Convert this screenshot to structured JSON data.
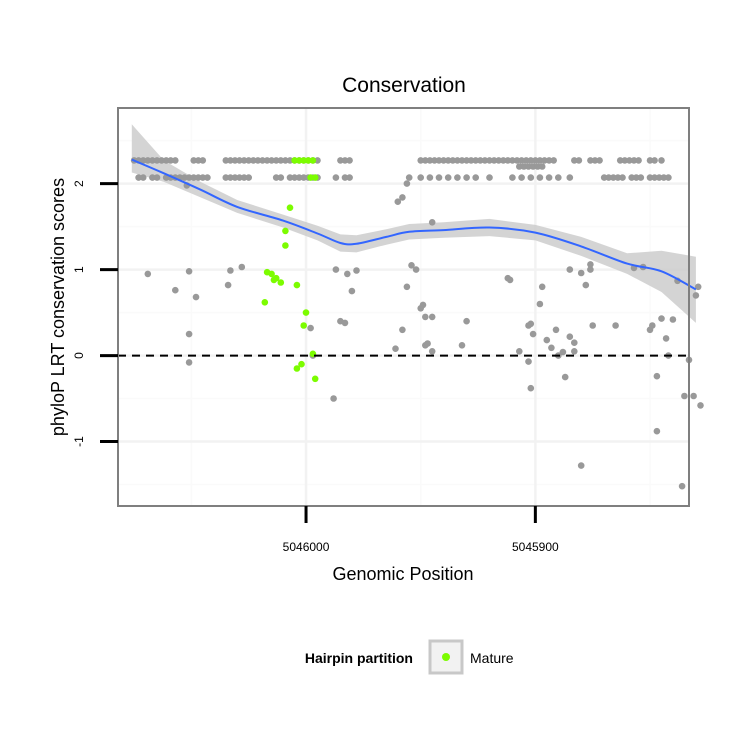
{
  "chart_data": {
    "type": "scatter",
    "title": "Conservation",
    "xlabel": "Genomic Position",
    "ylabel": "phyloP LRT conservation scores",
    "x_reversed": true,
    "xlim": [
      5046082,
      5045833
    ],
    "ylim": [
      -1.75,
      2.88
    ],
    "x_ticks": [
      5046000,
      5045900
    ],
    "x_tick_labels": [
      "5046000",
      "5045900"
    ],
    "y_ticks": [
      -1,
      0,
      1,
      2
    ],
    "y_tick_labels": [
      "-1",
      "0",
      "1",
      "2"
    ],
    "grid": true,
    "reference_line": {
      "y": 0,
      "style": "dashed",
      "color": "#000000"
    },
    "legend": {
      "title": "Hairpin partition",
      "placement": "bottom",
      "entries": [
        {
          "label": "Mature",
          "color": "#7cfc00"
        }
      ]
    },
    "series": [
      {
        "color": "#999999",
        "points": [
          [
            5046075,
            2.27
          ],
          [
            5046073,
            2.27
          ],
          [
            5046071,
            2.27
          ],
          [
            5046069,
            2.27
          ],
          [
            5046067,
            2.27
          ],
          [
            5046065,
            2.27
          ],
          [
            5046063,
            2.27
          ],
          [
            5046061,
            2.27
          ],
          [
            5046059,
            2.27
          ],
          [
            5046057,
            2.27
          ],
          [
            5046049,
            2.27
          ],
          [
            5046047,
            2.27
          ],
          [
            5046045,
            2.27
          ],
          [
            5046035,
            2.27
          ],
          [
            5046033,
            2.27
          ],
          [
            5046031,
            2.27
          ],
          [
            5046029,
            2.27
          ],
          [
            5046027,
            2.27
          ],
          [
            5046025,
            2.27
          ],
          [
            5046023,
            2.27
          ],
          [
            5046021,
            2.27
          ],
          [
            5046019,
            2.27
          ],
          [
            5046017,
            2.27
          ],
          [
            5046015,
            2.27
          ],
          [
            5046013,
            2.27
          ],
          [
            5046011,
            2.27
          ],
          [
            5046009,
            2.27
          ],
          [
            5046007,
            2.27
          ],
          [
            5046005,
            2.27
          ],
          [
            5046003,
            2.27
          ],
          [
            5046001,
            2.27
          ],
          [
            5045999,
            2.27
          ],
          [
            5045997,
            2.27
          ],
          [
            5045995,
            2.27
          ],
          [
            5045985,
            2.27
          ],
          [
            5045983,
            2.27
          ],
          [
            5045981,
            2.27
          ],
          [
            5045950,
            2.27
          ],
          [
            5045948,
            2.27
          ],
          [
            5045946,
            2.27
          ],
          [
            5045944,
            2.27
          ],
          [
            5045942,
            2.27
          ],
          [
            5045940,
            2.27
          ],
          [
            5045938,
            2.27
          ],
          [
            5045936,
            2.27
          ],
          [
            5045934,
            2.27
          ],
          [
            5045932,
            2.27
          ],
          [
            5045930,
            2.27
          ],
          [
            5045928,
            2.27
          ],
          [
            5045926,
            2.27
          ],
          [
            5045924,
            2.27
          ],
          [
            5045922,
            2.27
          ],
          [
            5045920,
            2.27
          ],
          [
            5045918,
            2.27
          ],
          [
            5045916,
            2.27
          ],
          [
            5045914,
            2.27
          ],
          [
            5045912,
            2.27
          ],
          [
            5045910,
            2.27
          ],
          [
            5045908,
            2.27
          ],
          [
            5045906,
            2.27
          ],
          [
            5045904,
            2.27
          ],
          [
            5045902,
            2.27
          ],
          [
            5045900,
            2.27
          ],
          [
            5045898,
            2.27
          ],
          [
            5045896,
            2.27
          ],
          [
            5045894,
            2.27
          ],
          [
            5045892,
            2.27
          ],
          [
            5045883,
            2.27
          ],
          [
            5045881,
            2.27
          ],
          [
            5045876,
            2.27
          ],
          [
            5045874,
            2.27
          ],
          [
            5045872,
            2.27
          ],
          [
            5045863,
            2.27
          ],
          [
            5045861,
            2.27
          ],
          [
            5045859,
            2.27
          ],
          [
            5045857,
            2.27
          ],
          [
            5045855,
            2.27
          ],
          [
            5045850,
            2.27
          ],
          [
            5045848,
            2.27
          ],
          [
            5045845,
            2.27
          ],
          [
            5046073,
            2.07
          ],
          [
            5046071,
            2.07
          ],
          [
            5046067,
            2.07
          ],
          [
            5046065,
            2.07
          ],
          [
            5046061,
            2.07
          ],
          [
            5046059,
            2.07
          ],
          [
            5046057,
            2.07
          ],
          [
            5046055,
            2.07
          ],
          [
            5046053,
            2.07
          ],
          [
            5046051,
            2.07
          ],
          [
            5046049,
            2.07
          ],
          [
            5046047,
            2.07
          ],
          [
            5046045,
            2.07
          ],
          [
            5046043,
            2.07
          ],
          [
            5046035,
            2.07
          ],
          [
            5046033,
            2.07
          ],
          [
            5046031,
            2.07
          ],
          [
            5046029,
            2.07
          ],
          [
            5046027,
            2.07
          ],
          [
            5046025,
            2.07
          ],
          [
            5046013,
            2.07
          ],
          [
            5046011,
            2.07
          ],
          [
            5046007,
            2.07
          ],
          [
            5046005,
            2.07
          ],
          [
            5046003,
            2.07
          ],
          [
            5046001,
            2.07
          ],
          [
            5045999,
            2.07
          ],
          [
            5045997,
            2.07
          ],
          [
            5045995,
            2.07
          ],
          [
            5045987,
            2.07
          ],
          [
            5045983,
            2.07
          ],
          [
            5045981,
            2.07
          ],
          [
            5045955,
            2.07
          ],
          [
            5045950,
            2.07
          ],
          [
            5045946,
            2.07
          ],
          [
            5045942,
            2.07
          ],
          [
            5045938,
            2.07
          ],
          [
            5045934,
            2.07
          ],
          [
            5045930,
            2.07
          ],
          [
            5045926,
            2.07
          ],
          [
            5045920,
            2.07
          ],
          [
            5045910,
            2.07
          ],
          [
            5045906,
            2.07
          ],
          [
            5045902,
            2.07
          ],
          [
            5045898,
            2.07
          ],
          [
            5045894,
            2.07
          ],
          [
            5045890,
            2.07
          ],
          [
            5045885,
            2.07
          ],
          [
            5045870,
            2.07
          ],
          [
            5045868,
            2.07
          ],
          [
            5045866,
            2.07
          ],
          [
            5045864,
            2.07
          ],
          [
            5045862,
            2.07
          ],
          [
            5045858,
            2.07
          ],
          [
            5045856,
            2.07
          ],
          [
            5045854,
            2.07
          ],
          [
            5045850,
            2.07
          ],
          [
            5045848,
            2.07
          ],
          [
            5045846,
            2.07
          ],
          [
            5045844,
            2.07
          ],
          [
            5045842,
            2.07
          ],
          [
            5046052,
            1.98
          ],
          [
            5045907,
            2.2
          ],
          [
            5045905,
            2.2
          ],
          [
            5045903,
            2.2
          ],
          [
            5045901,
            2.2
          ],
          [
            5045899,
            2.2
          ],
          [
            5045897,
            2.2
          ],
          [
            5045960,
            1.79
          ],
          [
            5045958,
            1.84
          ],
          [
            5045956,
            2.0
          ],
          [
            5045945,
            1.55
          ],
          [
            5046069,
            0.95
          ],
          [
            5046057,
            0.76
          ],
          [
            5046051,
            0.98
          ],
          [
            5046048,
            0.68
          ],
          [
            5046051,
            0.25
          ],
          [
            5046051,
            -0.08
          ],
          [
            5046034,
            0.82
          ],
          [
            5046033,
            0.99
          ],
          [
            5046028,
            1.03
          ],
          [
            5045998,
            0.32
          ],
          [
            5045997,
            0.0
          ],
          [
            5045987,
            1.0
          ],
          [
            5045985,
            0.4
          ],
          [
            5045982,
            0.95
          ],
          [
            5045980,
            0.75
          ],
          [
            5045988,
            -0.5
          ],
          [
            5045983,
            0.38
          ],
          [
            5045978,
            0.99
          ],
          [
            5045958,
            0.3
          ],
          [
            5045961,
            0.08
          ],
          [
            5045956,
            0.8
          ],
          [
            5045954,
            1.05
          ],
          [
            5045952,
            1.0
          ],
          [
            5045950,
            0.55
          ],
          [
            5045949,
            0.59
          ],
          [
            5045948,
            0.45
          ],
          [
            5045945,
            0.45
          ],
          [
            5045948,
            0.12
          ],
          [
            5045947,
            0.14
          ],
          [
            5045945,
            0.05
          ],
          [
            5045930,
            0.4
          ],
          [
            5045932,
            0.12
          ],
          [
            5045912,
            0.9
          ],
          [
            5045911,
            0.88
          ],
          [
            5045907,
            0.05
          ],
          [
            5045903,
            0.35
          ],
          [
            5045902,
            0.37
          ],
          [
            5045903,
            -0.07
          ],
          [
            5045901,
            0.25
          ],
          [
            5045902,
            -0.38
          ],
          [
            5045898,
            0.6
          ],
          [
            5045897,
            0.8
          ],
          [
            5045895,
            0.18
          ],
          [
            5045893,
            0.09
          ],
          [
            5045891,
            0.3
          ],
          [
            5045890,
            0.0
          ],
          [
            5045888,
            0.04
          ],
          [
            5045887,
            -0.25
          ],
          [
            5045885,
            0.22
          ],
          [
            5045883,
            0.05
          ],
          [
            5045885,
            1.0
          ],
          [
            5045880,
            0.96
          ],
          [
            5045878,
            0.82
          ],
          [
            5045876,
            1.0
          ],
          [
            5045875,
            0.35
          ],
          [
            5045876,
            1.06
          ],
          [
            5045880,
            -1.28
          ],
          [
            5045883,
            0.15
          ],
          [
            5045865,
            0.35
          ],
          [
            5045857,
            1.02
          ],
          [
            5045853,
            1.03
          ],
          [
            5045850,
            0.3
          ],
          [
            5045847,
            -0.24
          ],
          [
            5045849,
            0.35
          ],
          [
            5045847,
            -0.88
          ],
          [
            5045845,
            0.43
          ],
          [
            5045843,
            0.2
          ],
          [
            5045840,
            0.42
          ],
          [
            5045842,
            0.0
          ],
          [
            5045835,
            -0.47
          ],
          [
            5045833,
            -0.05
          ],
          [
            5045838,
            0.87
          ],
          [
            5045836,
            -1.52
          ],
          [
            5045831,
            -0.47
          ],
          [
            5045830,
            0.7
          ],
          [
            5045828,
            -0.58
          ],
          [
            5045829,
            0.8
          ]
        ]
      },
      {
        "name": "Mature",
        "color": "#7cfc00",
        "points": [
          [
            5046005,
            2.27
          ],
          [
            5046003,
            2.27
          ],
          [
            5046001,
            2.27
          ],
          [
            5045999,
            2.27
          ],
          [
            5045997,
            2.27
          ],
          [
            5045998,
            2.07
          ],
          [
            5045996,
            2.07
          ],
          [
            5046007,
            1.72
          ],
          [
            5046009,
            1.45
          ],
          [
            5046009,
            1.28
          ],
          [
            5046017,
            0.97
          ],
          [
            5046015,
            0.95
          ],
          [
            5046013,
            0.9
          ],
          [
            5046011,
            0.85
          ],
          [
            5046014,
            0.88
          ],
          [
            5046018,
            0.62
          ],
          [
            5046004,
            0.82
          ],
          [
            5046000,
            0.5
          ],
          [
            5046001,
            0.35
          ],
          [
            5045997,
            0.02
          ],
          [
            5046004,
            -0.15
          ],
          [
            5046002,
            -0.1
          ],
          [
            5045996,
            -0.27
          ]
        ]
      }
    ],
    "smooth": {
      "color": "#3366ff",
      "band_color": "#cccccc",
      "x": [
        5046076,
        5046062,
        5046046,
        5046030,
        5046010,
        5045995,
        5045985,
        5045978,
        5045965,
        5045955,
        5045940,
        5045920,
        5045900,
        5045880,
        5045860,
        5045845,
        5045830
      ],
      "y": [
        2.28,
        2.12,
        1.93,
        1.73,
        1.57,
        1.42,
        1.31,
        1.3,
        1.38,
        1.44,
        1.46,
        1.49,
        1.43,
        1.27,
        1.07,
        0.98,
        0.77
      ],
      "lower": [
        2.13,
        2.02,
        1.84,
        1.66,
        1.49,
        1.34,
        1.21,
        1.2,
        1.29,
        1.35,
        1.37,
        1.39,
        1.34,
        1.16,
        0.95,
        0.74,
        0.38
      ],
      "upper": [
        2.69,
        2.27,
        2.02,
        1.81,
        1.64,
        1.51,
        1.41,
        1.4,
        1.47,
        1.53,
        1.55,
        1.59,
        1.52,
        1.38,
        1.19,
        1.22,
        1.15
      ]
    }
  }
}
